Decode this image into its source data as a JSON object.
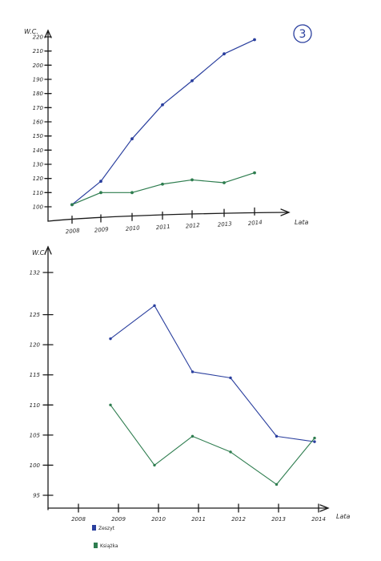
{
  "page_number": "3",
  "chart_data": [
    {
      "type": "line",
      "xlabel": "Lata",
      "ylabel": "W.C.",
      "categories": [
        "2008",
        "2009",
        "2010",
        "2011",
        "2012",
        "2013",
        "2014"
      ],
      "y_ticks": [
        "100",
        "110",
        "120",
        "130",
        "140",
        "150",
        "160",
        "170",
        "180",
        "190",
        "200",
        "210",
        "220"
      ],
      "ylim": [
        100,
        220
      ],
      "series": [
        {
          "color": "#2a3f9e",
          "values": [
            101.5,
            118,
            148,
            172,
            189,
            208,
            218
          ]
        },
        {
          "color": "#2e7d4f",
          "values": [
            101.5,
            110,
            110,
            116,
            119,
            117,
            124
          ]
        }
      ]
    },
    {
      "type": "line",
      "xlabel": "Lata",
      "ylabel": "W.C.",
      "categories": [
        "2008",
        "2009",
        "2010",
        "2011",
        "2012",
        "2013",
        "2014"
      ],
      "y_ticks": [
        "95",
        "100",
        "105",
        "110",
        "115",
        "120",
        "125",
        "132"
      ],
      "ylim": [
        95,
        132
      ],
      "x": [
        2008.8,
        2009.9,
        2010.85,
        2011.8,
        2012.95,
        2013.9
      ],
      "series": [
        {
          "name": "Zeszyt",
          "color": "#2a3f9e",
          "values": [
            121,
            126.5,
            115.5,
            114.5,
            104.8,
            103.9
          ]
        },
        {
          "name": "Książka",
          "color": "#2e7d4f",
          "values": [
            110,
            100,
            104.8,
            102.2,
            96.8,
            104.5
          ]
        }
      ]
    }
  ]
}
